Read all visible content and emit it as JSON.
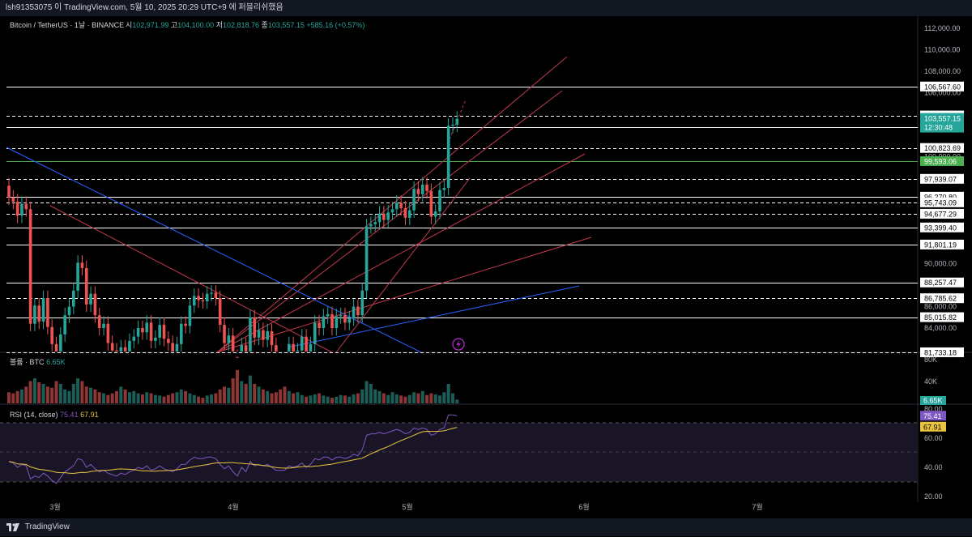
{
  "header": {
    "publish_note": "lsh91353075 이 TradingView.com, 5월 10, 2025 20:29 UTC+9 에 퍼블리쉬했음"
  },
  "legend": {
    "symbol": "Bitcoin / TetherUS · 1날 · BINANCE",
    "open_label": "시",
    "open": "102,971.99",
    "high_label": "고",
    "high": "104,100.00",
    "low_label": "저",
    "low": "102,818.76",
    "close_label": "종",
    "close": "103,557.15",
    "change": "+585.16 (+0.57%)"
  },
  "volume_panel": {
    "label": "볼륨 · BTC",
    "value": "6.65K"
  },
  "rsi_panel": {
    "label": "RSI (14, close)",
    "rsi": "75.41",
    "rsi_ma": "67.91"
  },
  "footer": {
    "brand": "TradingView"
  },
  "colors": {
    "up": "#26a69a",
    "down": "#ef5350",
    "up_volume": "#1b5e57",
    "down_volume": "#8e3636",
    "rsi_line": "#7e57c2",
    "rsi_ma": "#e8c440",
    "resistance_green": "#4caf50",
    "fan_line": "#c2394c",
    "trend_blue": "#2962ff"
  },
  "chart_data": {
    "type": "candlestick",
    "symbol": "BTCUSDT",
    "timeframe": "1D",
    "price_axis_ticks": [
      112000,
      110000,
      108000,
      106000,
      100000,
      90000,
      86000,
      84000
    ],
    "price_axis_tick_labels": [
      "112,000.00",
      "110,000.00",
      "108,000.00",
      "106,000.00",
      "100,000.00",
      "90,000.00",
      "86,000.00",
      "84,000.00"
    ],
    "x_axis_labels": [
      "3월",
      "4월",
      "5월",
      "6월",
      "7월"
    ],
    "current_price": "103,557.15",
    "countdown": "12:30:48",
    "horizontal_levels": [
      {
        "value": 106567.6,
        "label": "106,567.60",
        "style": "solid",
        "color": "#ffffff"
      },
      {
        "value": 103858.95,
        "label": "103,858.95",
        "style": "dashed",
        "color": "#ffffff"
      },
      {
        "value": 102796.61,
        "label": "102,796.61",
        "style": "solid",
        "color": "#ffffff"
      },
      {
        "value": 100823.69,
        "label": "100,823.69",
        "style": "dashed",
        "color": "#ffffff"
      },
      {
        "value": 99593.06,
        "label": "99,593.06",
        "style": "solid",
        "color": "#4caf50"
      },
      {
        "value": 97939.07,
        "label": "97,939.07",
        "style": "dashed",
        "color": "#ffffff"
      },
      {
        "value": 96270.8,
        "label": "96,270.80",
        "style": "solid",
        "color": "#ffffff"
      },
      {
        "value": 95743.09,
        "label": "95,743.09",
        "style": "dashed",
        "color": "#ffffff"
      },
      {
        "value": 94677.29,
        "label": "94,677.29",
        "style": "dashed",
        "color": "#ffffff"
      },
      {
        "value": 93399.4,
        "label": "93,399.40",
        "style": "solid",
        "color": "#ffffff"
      },
      {
        "value": 91801.19,
        "label": "91,801.19",
        "style": "solid",
        "color": "#ffffff"
      },
      {
        "value": 88257.47,
        "label": "88,257.47",
        "style": "solid",
        "color": "#ffffff"
      },
      {
        "value": 86785.62,
        "label": "86,785.62",
        "style": "dashed",
        "color": "#ffffff"
      },
      {
        "value": 85015.82,
        "label": "85,015.82",
        "style": "solid",
        "color": "#ffffff"
      },
      {
        "value": 81733.18,
        "label": "81,733.18",
        "style": "dashed",
        "color": "#ffffff"
      }
    ],
    "closes": [
      96200,
      95800,
      94500,
      95600,
      95100,
      84400,
      86100,
      84600,
      86800,
      84100,
      82500,
      81500,
      83400,
      85200,
      86000,
      87500,
      90100,
      89600,
      86200,
      87200,
      85200,
      84000,
      84400,
      82600,
      81900,
      81000,
      82200,
      81600,
      82800,
      83200,
      84000,
      83600,
      84500,
      82800,
      83100,
      84300,
      83000,
      82600,
      81800,
      82500,
      84400,
      84200,
      86100,
      87000,
      86600,
      86500,
      87200,
      87300,
      86800,
      84300,
      82600,
      83300,
      81300,
      79200,
      82400,
      80700,
      85000,
      83100,
      83800,
      82900,
      83700,
      82400,
      80900,
      80600,
      80500,
      82500,
      81400,
      81900,
      83200,
      81500,
      82500,
      84500,
      84000,
      85100,
      85300,
      84000,
      85100,
      85200,
      84500,
      84900,
      86000,
      85200,
      87500,
      93500,
      93700,
      93900,
      94700,
      94100,
      94800,
      95100,
      95700,
      95200,
      94300,
      95000,
      97000,
      96500,
      97400,
      96800,
      94400,
      94900,
      96900,
      97100,
      102900,
      103000,
      103557.15
    ],
    "volumes_k": [
      20,
      18,
      22,
      25,
      30,
      40,
      45,
      38,
      35,
      30,
      28,
      40,
      35,
      25,
      22,
      35,
      45,
      40,
      30,
      28,
      25,
      20,
      18,
      15,
      18,
      22,
      30,
      25,
      20,
      22,
      18,
      16,
      20,
      18,
      15,
      14,
      12,
      15,
      18,
      20,
      25,
      22,
      18,
      15,
      12,
      10,
      14,
      16,
      18,
      25,
      30,
      28,
      45,
      60,
      40,
      35,
      50,
      35,
      30,
      25,
      22,
      18,
      20,
      25,
      30,
      22,
      18,
      20,
      15,
      12,
      14,
      16,
      18,
      14,
      12,
      10,
      12,
      15,
      14,
      12,
      16,
      18,
      25,
      40,
      35,
      25,
      22,
      18,
      15,
      20,
      16,
      14,
      12,
      15,
      20,
      18,
      22,
      15,
      18,
      16,
      14,
      20,
      35,
      18,
      6.65
    ],
    "rsi": [
      44,
      43,
      40,
      42,
      41,
      32,
      34,
      33,
      36,
      34,
      31,
      29,
      33,
      37,
      39,
      41,
      46,
      45,
      40,
      42,
      39,
      37,
      38,
      36,
      35,
      34,
      36,
      35,
      37,
      38,
      40,
      39,
      41,
      38,
      39,
      41,
      39,
      38,
      37,
      39,
      42,
      42,
      45,
      47,
      46,
      46,
      47,
      47,
      46,
      42,
      39,
      41,
      37,
      34,
      40,
      37,
      44,
      41,
      42,
      41,
      42,
      40,
      38,
      38,
      38,
      41,
      40,
      41,
      43,
      40,
      42,
      46,
      45,
      47,
      47,
      45,
      47,
      47,
      46,
      47,
      49,
      48,
      52,
      62,
      63,
      63,
      64,
      63,
      64,
      65,
      66,
      65,
      63,
      64,
      67,
      66,
      67,
      66,
      62,
      63,
      66,
      67,
      76,
      76,
      75.41
    ],
    "rsi_ma_last": 67.91,
    "rsi_axis_ticks": [
      80,
      60,
      40,
      20
    ],
    "volume_axis_ticks": [
      "80K",
      "40K"
    ]
  }
}
